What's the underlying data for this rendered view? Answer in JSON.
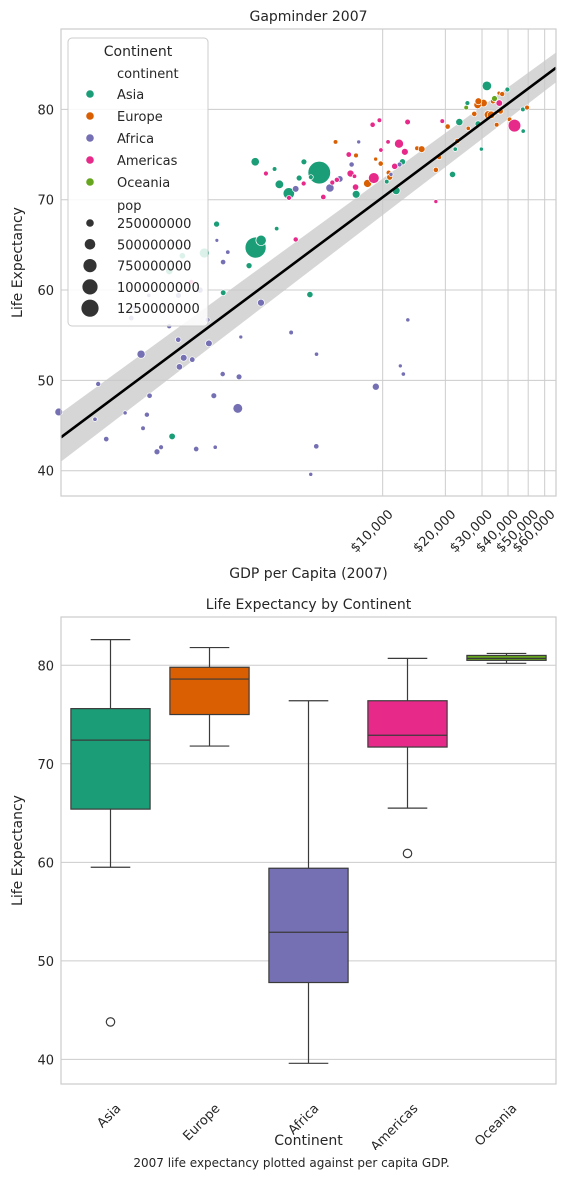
{
  "caption": "2007 life expectancy plotted against per capita GDP.",
  "colors": {
    "Asia": "#1b9e77",
    "Europe": "#d95f02",
    "Africa": "#7570b3",
    "Americas": "#e7298a",
    "Oceania": "#66a61e",
    "regression": "#000000",
    "band": "#c8c8c8"
  },
  "chart_data": [
    {
      "type": "scatter",
      "title": "Gapminder 2007",
      "xlabel": "GDP per Capita (2007)",
      "ylabel": "Life Expectancy",
      "xscale": "log",
      "xlim": [
        285,
        68000
      ],
      "ylim": [
        37.2,
        88.9
      ],
      "xticks": [
        10000,
        20000,
        30000,
        40000,
        50000,
        60000
      ],
      "xtick_labels": [
        "$10,000",
        "$20,000",
        "$30,000",
        "$40,000",
        "$50,000",
        "$60,000"
      ],
      "yticks": [
        40,
        50,
        60,
        70,
        80
      ],
      "yticklabels": [
        "40",
        "50",
        "60",
        "70",
        "80"
      ],
      "grid": true,
      "legend": {
        "title": "Continent",
        "placement": "upper-left",
        "hue_title": "continent",
        "hue_items": [
          "Asia",
          "Europe",
          "Africa",
          "Americas",
          "Oceania"
        ],
        "size_title": "pop",
        "size_items": [
          "250000000",
          "500000000",
          "750000000",
          "1000000000",
          "1250000000"
        ]
      },
      "regression": {
        "x": [
          285,
          68000
        ],
        "y": [
          43.7,
          84.6
        ],
        "ci_low": [
          41.0,
          83.0
        ],
        "ci_high": [
          46.4,
          86.3
        ]
      },
      "series": [
        {
          "name": "Asia",
          "points": [
            [
              974,
              43.8,
              32
            ],
            [
              29796,
              75.6,
              1
            ],
            [
              1391,
              64.1,
              150
            ],
            [
              1714,
              59.7,
              15
            ],
            [
              4959,
              73.0,
              1320
            ],
            [
              39725,
              82.2,
              7
            ],
            [
              2452,
              64.7,
              1110
            ],
            [
              3541,
              70.7,
              223
            ],
            [
              11606,
              71.0,
              69
            ],
            [
              4471,
              59.5,
              27
            ],
            [
              25523,
              80.7,
              6
            ],
            [
              31656,
              82.6,
              127
            ],
            [
              4519,
              72.5,
              6
            ],
            [
              1593,
              67.3,
              23
            ],
            [
              23348,
              78.6,
              49
            ],
            [
              47307,
              77.6,
              2
            ],
            [
              10461,
              72.0,
              4
            ],
            [
              12452,
              74.2,
              24
            ],
            [
              3096,
              66.8,
              3
            ],
            [
              944,
              62.1,
              47
            ],
            [
              1091,
              63.8,
              28
            ],
            [
              22316,
              75.6,
              3
            ],
            [
              2606,
              65.5,
              169
            ],
            [
              3190,
              71.7,
              91
            ],
            [
              21655,
              72.8,
              27
            ],
            [
              47143,
              80.0,
              4
            ],
            [
              3970,
              72.4,
              20
            ],
            [
              28718,
              78.4,
              23
            ],
            [
              4185,
              74.2,
              19
            ],
            [
              7458,
              70.6,
              65
            ],
            [
              2442,
              74.2,
              85
            ],
            [
              3025,
              73.4,
              4
            ],
            [
              2281,
              62.7,
              22
            ]
          ]
        },
        {
          "name": "Europe",
          "points": [
            [
              5937,
              76.4,
              4
            ],
            [
              36126,
              79.8,
              8
            ],
            [
              33693,
              79.4,
              10
            ],
            [
              7446,
              74.9,
              5
            ],
            [
              10681,
              73.0,
              7
            ],
            [
              14619,
              75.7,
              4
            ],
            [
              22833,
              76.5,
              10
            ],
            [
              35278,
              78.3,
              5
            ],
            [
              33207,
              79.3,
              5
            ],
            [
              30470,
              80.7,
              61
            ],
            [
              32170,
              79.4,
              82
            ],
            [
              27538,
              79.5,
              11
            ],
            [
              18009,
              73.3,
              10
            ],
            [
              36181,
              81.8,
              0.3
            ],
            [
              40676,
              78.9,
              4
            ],
            [
              28570,
              80.5,
              58
            ],
            [
              9253,
              74.5,
              0.7
            ],
            [
              36798,
              79.8,
              16
            ],
            [
              49357,
              80.2,
              5
            ],
            [
              15390,
              75.6,
              38
            ],
            [
              20510,
              78.1,
              11
            ],
            [
              10808,
              72.5,
              22
            ],
            [
              9787,
              74.0,
              10
            ],
            [
              18678,
              74.7,
              5
            ],
            [
              25768,
              77.9,
              2
            ],
            [
              28821,
              80.9,
              40
            ],
            [
              33860,
              80.9,
              9
            ],
            [
              37506,
              81.7,
              8
            ],
            [
              8458,
              71.8,
              71
            ],
            [
              33203,
              79.4,
              61
            ]
          ]
        },
        {
          "name": "Africa",
          "points": [
            [
              6223,
              72.3,
              33
            ],
            [
              4797,
              42.7,
              12
            ],
            [
              1441,
              56.7,
              8
            ],
            [
              12570,
              50.7,
              2
            ],
            [
              1217,
              52.3,
              14
            ],
            [
              430,
              49.6,
              8
            ],
            [
              2042,
              50.4,
              18
            ],
            [
              706,
              44.7,
              4
            ],
            [
              1704,
              50.7,
              10
            ],
            [
              986,
              65.2,
              0.7
            ],
            [
              278,
              46.5,
              65
            ],
            [
              3633,
              55.3,
              4
            ],
            [
              1545,
              48.3,
              18
            ],
            [
              2082,
              54.8,
              0.5
            ],
            [
              5581,
              71.3,
              80
            ],
            [
              12154,
              51.6,
              0.6
            ],
            [
              641,
              58.0,
              4
            ],
            [
              691,
              52.9,
              77
            ],
            [
              13206,
              56.7,
              1.5
            ],
            [
              753,
              59.4,
              1.7
            ],
            [
              1328,
              60.0,
              23
            ],
            [
              943,
              56.0,
              9
            ],
            [
              579,
              46.4,
              1.5
            ],
            [
              1463,
              54.1,
              36
            ],
            [
              1569,
              42.6,
              2
            ],
            [
              415,
              45.7,
              3
            ],
            [
              12057,
              73.9,
              6
            ],
            [
              1045,
              59.4,
              19
            ],
            [
              759,
              48.3,
              13
            ],
            [
              1042,
              54.5,
              12
            ],
            [
              1803,
              64.2,
              3
            ],
            [
              10957,
              72.8,
              1.3
            ],
            [
              3820,
              71.2,
              34
            ],
            [
              824,
              42.1,
              20
            ],
            [
              4811,
              52.9,
              2
            ],
            [
              620,
              56.9,
              13
            ],
            [
              2014,
              46.9,
              135
            ],
            [
              7670,
              76.4,
              0.8
            ],
            [
              737,
              46.2,
              9
            ],
            [
              1598,
              65.5,
              0.2
            ],
            [
              1712,
              63.1,
              12
            ],
            [
              862,
              42.6,
              6
            ],
            [
              7093,
              72.8,
              0.1
            ],
            [
              9270,
              49.3,
              44
            ],
            [
              2602,
              58.6,
              42
            ],
            [
              4513,
              39.6,
              1.1
            ],
            [
              1107,
              52.5,
              38
            ],
            [
              883,
              58.4,
              5.7
            ],
            [
              7093,
              73.9,
              10
            ],
            [
              1056,
              51.5,
              29
            ],
            [
              1271,
              42.4,
              12
            ],
            [
              470,
              43.5,
              12
            ]
          ]
        },
        {
          "name": "Americas",
          "points": [
            [
              12779,
              75.3,
              40
            ],
            [
              3822,
              65.6,
              9
            ],
            [
              9066,
              72.4,
              190
            ],
            [
              36319,
              80.7,
              33
            ],
            [
              13172,
              78.6,
              16
            ],
            [
              7007,
              72.9,
              44
            ],
            [
              9645,
              78.8,
              4
            ],
            [
              8948,
              78.3,
              11
            ],
            [
              6025,
              72.2,
              9
            ],
            [
              6873,
              75.0,
              14
            ],
            [
              5728,
              71.9,
              7
            ],
            [
              5186,
              70.3,
              13
            ],
            [
              1202,
              60.9,
              9
            ],
            [
              3548,
              70.2,
              7
            ],
            [
              7321,
              72.6,
              3
            ],
            [
              11978,
              76.2,
              108
            ],
            [
              2749,
              72.9,
              6
            ],
            [
              9809,
              75.5,
              3
            ],
            [
              4173,
              71.8,
              7
            ],
            [
              7409,
              71.4,
              28
            ],
            [
              19329,
              78.7,
              4
            ],
            [
              18009,
              69.8,
              1
            ],
            [
              42952,
              78.2,
              301
            ],
            [
              10611,
              76.4,
              3
            ],
            [
              11416,
              73.7,
              26
            ]
          ]
        },
        {
          "name": "Oceania",
          "points": [
            [
              34435,
              81.2,
              20
            ],
            [
              25185,
              80.2,
              4
            ]
          ]
        }
      ]
    },
    {
      "type": "box",
      "title": "Life Expectancy by Continent",
      "xlabel": "Continent",
      "ylabel": "Life Expectancy",
      "ylim": [
        37.5,
        84.9
      ],
      "yticks": [
        40,
        50,
        60,
        70,
        80
      ],
      "yticklabels": [
        "40",
        "50",
        "60",
        "70",
        "80"
      ],
      "grid": true,
      "categories": [
        "Asia",
        "Europe",
        "Africa",
        "Americas",
        "Oceania"
      ],
      "boxes": [
        {
          "name": "Asia",
          "whislo": 59.5,
          "q1": 65.4,
          "med": 72.4,
          "q3": 75.6,
          "whishi": 82.6,
          "fliers": [
            43.8
          ]
        },
        {
          "name": "Europe",
          "whislo": 71.8,
          "q1": 75.0,
          "med": 78.6,
          "q3": 79.8,
          "whishi": 81.8,
          "fliers": []
        },
        {
          "name": "Africa",
          "whislo": 39.6,
          "q1": 47.8,
          "med": 52.9,
          "q3": 59.4,
          "whishi": 76.4,
          "fliers": []
        },
        {
          "name": "Americas",
          "whislo": 65.5,
          "q1": 71.7,
          "med": 72.9,
          "q3": 76.4,
          "whishi": 80.7,
          "fliers": [
            60.9
          ]
        },
        {
          "name": "Oceania",
          "whislo": 80.2,
          "q1": 80.5,
          "med": 80.7,
          "q3": 81.0,
          "whishi": 81.2,
          "fliers": []
        }
      ]
    }
  ]
}
